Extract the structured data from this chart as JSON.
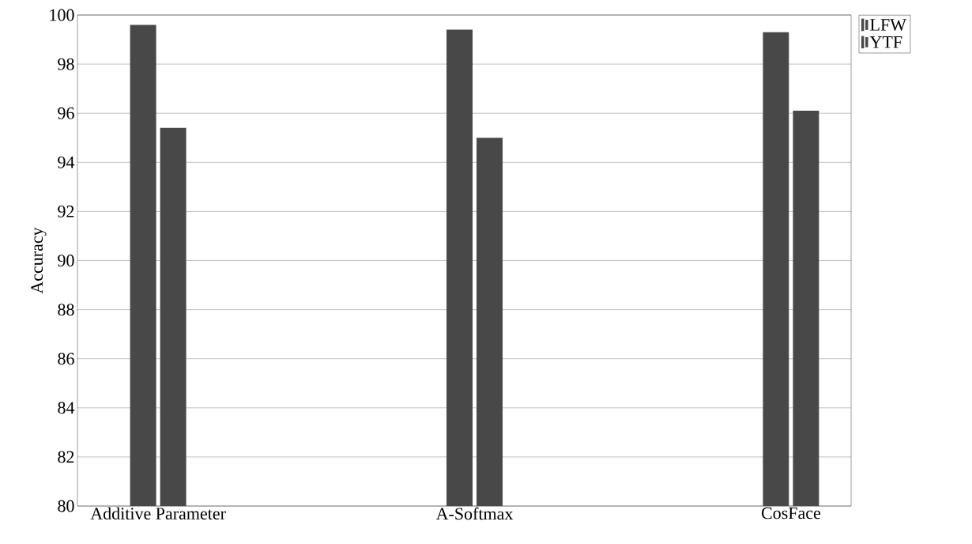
{
  "chart_data": {
    "type": "bar",
    "ylabel": "Accuracy",
    "categories": [
      "Additive Parameter",
      "A-Softmax",
      "CosFace"
    ],
    "series": [
      {
        "name": "LFW",
        "color": "#484848",
        "values": [
          99.6,
          99.4,
          99.3
        ]
      },
      {
        "name": "YTF",
        "color": "#484848",
        "values": [
          95.4,
          95.0,
          96.1
        ]
      }
    ],
    "ylim": [
      80,
      100
    ],
    "yticks": [
      80,
      82,
      84,
      86,
      88,
      90,
      92,
      94,
      96,
      98,
      100
    ],
    "grid": "y",
    "legend": "top right"
  }
}
